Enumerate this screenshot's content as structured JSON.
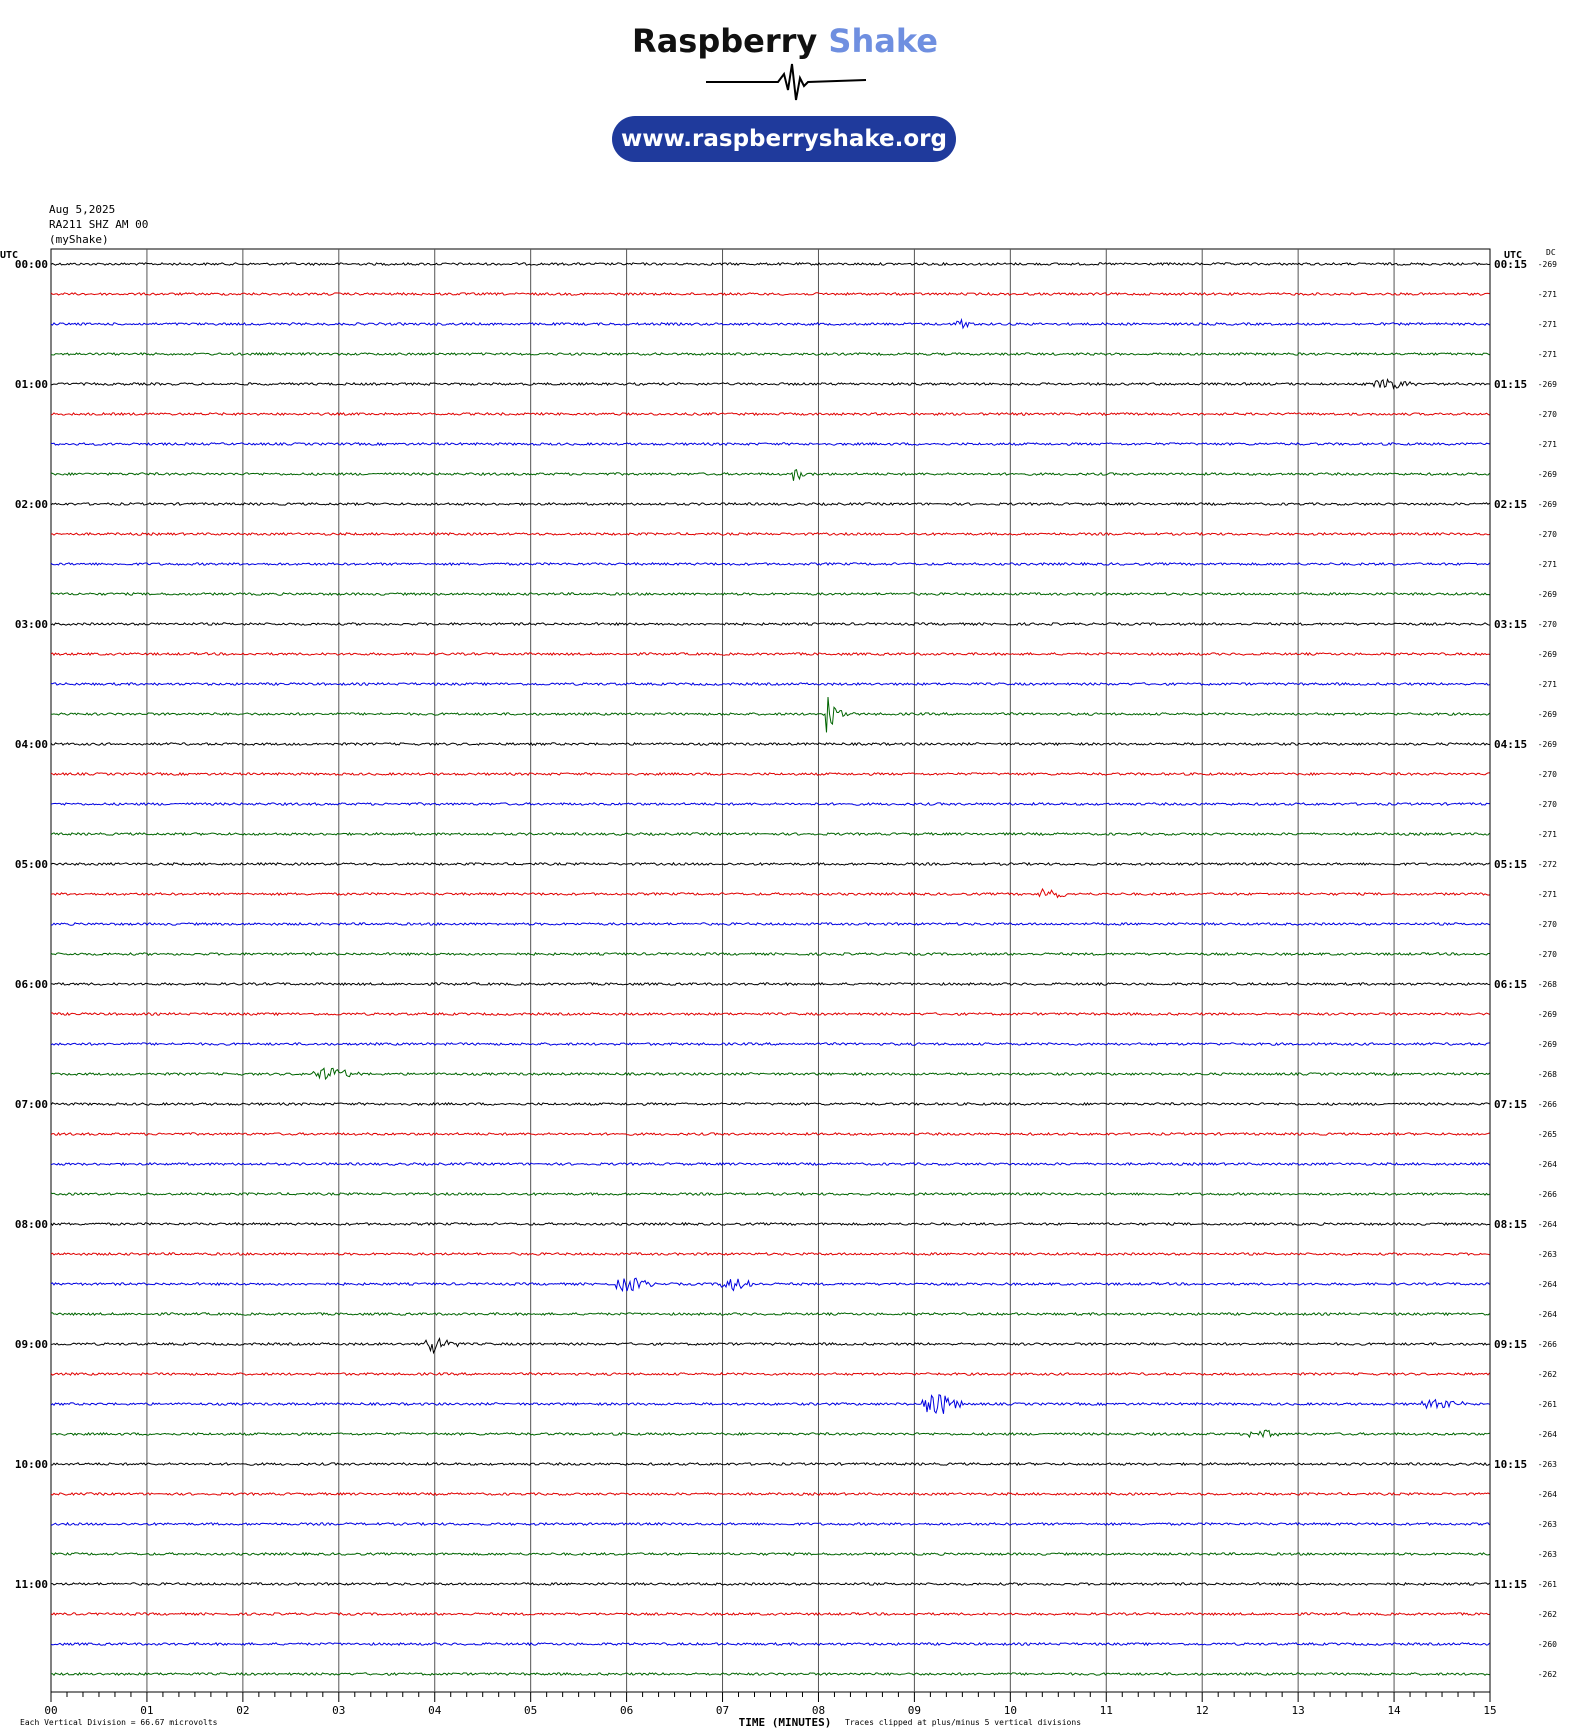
{
  "logo": {
    "name_part1": "Raspberry",
    "name_part2": "Shake",
    "url": "www.raspberryshake.org",
    "accent_color": "#6f8fe0",
    "pill_color": "#1f3a9c"
  },
  "header": {
    "date": "Aug 5,2025",
    "station": "RA211 SHZ AM 00",
    "source": "(myShake)"
  },
  "chart_data": {
    "type": "line",
    "subtype": "helicorder",
    "left_axis_label": "UTC",
    "right_axis_label": "UTC",
    "dc_label": "DC",
    "xlabel": "TIME (MINUTES)",
    "x_ticks": [
      "00",
      "01",
      "02",
      "03",
      "04",
      "05",
      "06",
      "07",
      "08",
      "09",
      "10",
      "11",
      "12",
      "13",
      "14",
      "15"
    ],
    "xlim": [
      0,
      15
    ],
    "line_colors": [
      "#000000",
      "#e00000",
      "#0000e0",
      "#006400"
    ],
    "rows_per_hour": 4,
    "left_hour_labels": [
      "00:00",
      "01:00",
      "02:00",
      "03:00",
      "04:00",
      "05:00",
      "06:00",
      "07:00",
      "08:00",
      "09:00",
      "10:00",
      "11:00"
    ],
    "right_hour_labels": [
      "00:15",
      "01:15",
      "02:15",
      "03:15",
      "04:15",
      "05:15",
      "06:15",
      "07:15",
      "08:15",
      "09:15",
      "10:15",
      "11:15"
    ],
    "dc_offsets": [
      "-269",
      "-271",
      "-271",
      "-271",
      "-269",
      "-270",
      "-271",
      "-269",
      "-269",
      "-270",
      "-271",
      "-269",
      "-270",
      "-269",
      "-271",
      "-269",
      "-269",
      "-270",
      "-270",
      "-271",
      "-272",
      "-271",
      "-270",
      "-270",
      "-268",
      "-269",
      "-269",
      "-268",
      "-266",
      "-265",
      "-264",
      "-266",
      "-264",
      "-263",
      "-264",
      "-264",
      "-266",
      "-262",
      "-261",
      "-264",
      "-263",
      "-264",
      "-263",
      "-263",
      "-261",
      "-262",
      "-260",
      "-262"
    ],
    "events": [
      {
        "row": 2,
        "minute": 9.45,
        "amp": 10,
        "dur": 0.25,
        "kind": "pulse"
      },
      {
        "row": 4,
        "minute": 13.8,
        "amp": 7,
        "dur": 0.45,
        "kind": "burst"
      },
      {
        "row": 7,
        "minute": 7.75,
        "amp": 12,
        "dur": 0.25,
        "kind": "pulse"
      },
      {
        "row": 15,
        "minute": 8.1,
        "amp": 26,
        "dur": 0.3,
        "kind": "pulse"
      },
      {
        "row": 21,
        "minute": 10.3,
        "amp": 7,
        "dur": 0.35,
        "kind": "burst"
      },
      {
        "row": 27,
        "minute": 2.75,
        "amp": 9,
        "dur": 0.5,
        "kind": "burst"
      },
      {
        "row": 34,
        "minute": 5.9,
        "amp": 9,
        "dur": 0.4,
        "kind": "burst"
      },
      {
        "row": 34,
        "minute": 7.0,
        "amp": 7,
        "dur": 0.4,
        "kind": "burst"
      },
      {
        "row": 36,
        "minute": 3.9,
        "amp": 10,
        "dur": 0.35,
        "kind": "burst"
      },
      {
        "row": 38,
        "minute": 9.1,
        "amp": 15,
        "dur": 0.4,
        "kind": "burst"
      },
      {
        "row": 38,
        "minute": 14.3,
        "amp": 6,
        "dur": 0.5,
        "kind": "burst"
      },
      {
        "row": 39,
        "minute": 12.5,
        "amp": 5,
        "dur": 0.35,
        "kind": "burst"
      }
    ],
    "footer_left": "Each Vertical Division =   66.67 microvolts",
    "footer_right": "Traces clipped at plus/minus 5 vertical divisions"
  }
}
